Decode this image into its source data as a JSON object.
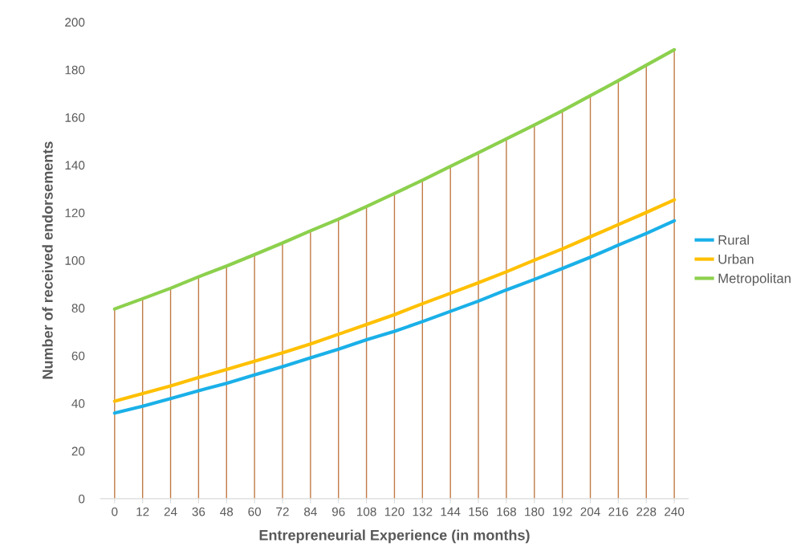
{
  "chart_data": {
    "type": "line",
    "xlabel": "Entrepreneurial Experience (in months)",
    "ylabel": "Number of received endorsements",
    "categories": [
      "0",
      "12",
      "24",
      "36",
      "48",
      "60",
      "72",
      "84",
      "96",
      "108",
      "120",
      "132",
      "144",
      "156",
      "168",
      "180",
      "192",
      "204",
      "216",
      "228",
      "240"
    ],
    "series": [
      {
        "name": "Rural",
        "color": "#1ab0e8",
        "values": [
          35.9,
          38.8,
          42.0,
          45.3,
          48.4,
          51.9,
          55.4,
          59.1,
          62.7,
          66.7,
          70.2,
          74.3,
          78.6,
          82.9,
          87.6,
          92.0,
          96.6,
          101.3,
          106.4,
          111.3,
          116.6
        ]
      },
      {
        "name": "Urban",
        "color": "#ffc000",
        "values": [
          40.9,
          44.1,
          47.3,
          50.8,
          54.2,
          57.7,
          61.2,
          64.9,
          69.0,
          73.1,
          77.2,
          81.8,
          86.2,
          90.6,
          95.2,
          100.1,
          104.8,
          109.9,
          115.0,
          120.1,
          125.4
        ]
      },
      {
        "name": "Metropolitan",
        "color": "#8cd04d",
        "values": [
          79.6,
          83.9,
          88.3,
          93.1,
          97.6,
          102.4,
          107.3,
          112.4,
          117.3,
          122.6,
          128.1,
          133.6,
          139.4,
          145.2,
          151.0,
          156.8,
          162.8,
          169.1,
          175.4,
          181.9,
          188.4
        ]
      }
    ],
    "ref_lines": [
      {
        "axis": "x",
        "value": "0",
        "color": "#c07a45"
      },
      {
        "axis": "x",
        "value": "12",
        "color": "#c07a45"
      },
      {
        "axis": "x",
        "value": "24",
        "color": "#c07a45"
      },
      {
        "axis": "x",
        "value": "36",
        "color": "#c07a45"
      },
      {
        "axis": "x",
        "value": "48",
        "color": "#c07a45"
      },
      {
        "axis": "x",
        "value": "60",
        "color": "#c07a45"
      },
      {
        "axis": "x",
        "value": "72",
        "color": "#c07a45"
      },
      {
        "axis": "x",
        "value": "84",
        "color": "#c07a45"
      },
      {
        "axis": "x",
        "value": "96",
        "color": "#c07a45"
      },
      {
        "axis": "x",
        "value": "108",
        "color": "#c07a45"
      },
      {
        "axis": "x",
        "value": "120",
        "color": "#c07a45"
      },
      {
        "axis": "x",
        "value": "132",
        "color": "#c07a45"
      },
      {
        "axis": "x",
        "value": "144",
        "color": "#c07a45"
      },
      {
        "axis": "x",
        "value": "156",
        "color": "#c07a45"
      },
      {
        "axis": "x",
        "value": "168",
        "color": "#c07a45"
      },
      {
        "axis": "x",
        "value": "180",
        "color": "#c07a45"
      },
      {
        "axis": "x",
        "value": "192",
        "color": "#c07a45"
      },
      {
        "axis": "x",
        "value": "204",
        "color": "#c07a45"
      },
      {
        "axis": "x",
        "value": "216",
        "color": "#c07a45"
      },
      {
        "axis": "x",
        "value": "228",
        "color": "#c07a45"
      },
      {
        "axis": "x",
        "value": "240",
        "color": "#c07a45"
      }
    ],
    "ylim": [
      0,
      200
    ],
    "yticks": [
      0,
      20,
      40,
      60,
      80,
      100,
      120,
      140,
      160,
      180,
      200
    ],
    "grid": false,
    "legend": "right",
    "marker": "none",
    "line_style": "solid"
  }
}
